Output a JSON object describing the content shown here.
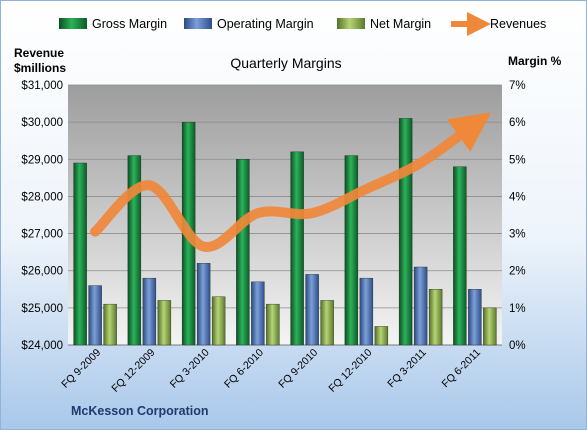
{
  "chart_data": {
    "type": "bar",
    "title": "Quarterly Margins",
    "company": "McKesson Corporation",
    "left_axis_label_line1": "Revenue",
    "left_axis_label_line2": "$millions",
    "right_axis_label": "Margin %",
    "categories": [
      "FQ 9-2009",
      "FQ 12-2009",
      "FQ 3-2010",
      "FQ 6-2010",
      "FQ 9-2010",
      "FQ 12-2010",
      "FQ 3-2011",
      "FQ 6-2011"
    ],
    "series": [
      {
        "name": "Gross Margin",
        "type": "bar",
        "axis": "right",
        "color": "#1a7a3c",
        "values": [
          4.9,
          5.1,
          6.0,
          5.0,
          5.2,
          5.1,
          6.1,
          4.8
        ]
      },
      {
        "name": "Operating Margin",
        "type": "bar",
        "axis": "right",
        "color": "#4a6fb5",
        "values": [
          1.6,
          1.8,
          2.2,
          1.7,
          1.9,
          1.8,
          2.1,
          1.5
        ]
      },
      {
        "name": "Net Margin",
        "type": "bar",
        "axis": "right",
        "color": "#8db04c",
        "values": [
          1.1,
          1.2,
          1.3,
          1.1,
          1.2,
          0.5,
          1.5,
          1.0
        ]
      },
      {
        "name": "Revenues",
        "type": "line",
        "axis": "left",
        "color": "#f0883a",
        "values": [
          27050,
          28300,
          26650,
          27550,
          27550,
          28200,
          28900,
          29950
        ]
      }
    ],
    "left_ylim": [
      24000,
      31000
    ],
    "left_ticks": [
      "$24,000",
      "$25,000",
      "$26,000",
      "$27,000",
      "$28,000",
      "$29,000",
      "$30,000",
      "$31,000"
    ],
    "right_ylim": [
      0,
      7
    ],
    "right_ticks": [
      "0%",
      "1%",
      "2%",
      "3%",
      "4%",
      "5%",
      "6%",
      "7%"
    ],
    "grid": true,
    "legend_position": "top"
  }
}
